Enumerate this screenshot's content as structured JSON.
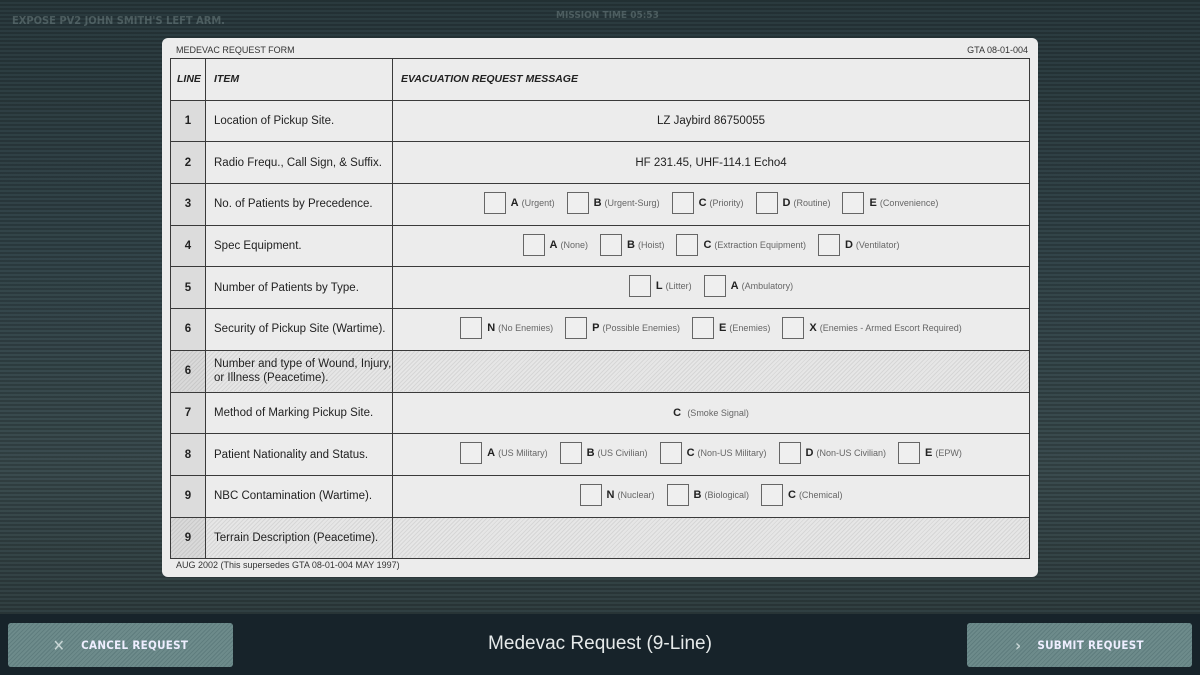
{
  "hud": {
    "objective": "EXPOSE PV2 JOHN SMITH'S LEFT ARM.",
    "mission_time_label": "MISSION TIME",
    "mission_time": "05:53"
  },
  "form": {
    "title": "MEDEVAC REQUEST FORM",
    "code": "GTA 08-01-004",
    "footer": "AUG 2002 (This supersedes GTA 08-01-004 MAY 1997)",
    "headers": {
      "line": "LINE",
      "item": "ITEM",
      "message": "EVACUATION REQUEST MESSAGE"
    },
    "rows": [
      {
        "line": "1",
        "item": "Location of Pickup Site.",
        "value": "LZ Jaybird 86750055"
      },
      {
        "line": "2",
        "item": "Radio Frequ., Call Sign, & Suffix.",
        "value": "HF 231.45, UHF-114.1 Echo4"
      },
      {
        "line": "3",
        "item": "No. of Patients by Precedence.",
        "options": [
          {
            "letter": "A",
            "desc": "(Urgent)"
          },
          {
            "letter": "B",
            "desc": "(Urgent-Surg)"
          },
          {
            "letter": "C",
            "desc": "(Priority)"
          },
          {
            "letter": "D",
            "desc": "(Routine)"
          },
          {
            "letter": "E",
            "desc": "(Convenience)"
          }
        ]
      },
      {
        "line": "4",
        "item": "Spec Equipment.",
        "options": [
          {
            "letter": "A",
            "desc": "(None)"
          },
          {
            "letter": "B",
            "desc": "(Hoist)"
          },
          {
            "letter": "C",
            "desc": "(Extraction Equipment)"
          },
          {
            "letter": "D",
            "desc": "(Ventilator)"
          }
        ]
      },
      {
        "line": "5",
        "item": "Number of Patients by Type.",
        "options": [
          {
            "letter": "L",
            "desc": "(Litter)"
          },
          {
            "letter": "A",
            "desc": "(Ambulatory)"
          }
        ]
      },
      {
        "line": "6",
        "item": "Security of Pickup Site (Wartime).",
        "options": [
          {
            "letter": "N",
            "desc": "(No Enemies)"
          },
          {
            "letter": "P",
            "desc": "(Possible Enemies)"
          },
          {
            "letter": "E",
            "desc": "(Enemies)"
          },
          {
            "letter": "X",
            "desc": "(Enemies - Armed Escort Required)"
          }
        ]
      },
      {
        "line": "6",
        "item": "Number and type of Wound, Injury, or Illness (Peacetime).",
        "disabled": true
      },
      {
        "line": "7",
        "item": "Method of Marking Pickup Site.",
        "marking": {
          "letter": "C",
          "desc": "(Smoke Signal)"
        }
      },
      {
        "line": "8",
        "item": "Patient Nationality and Status.",
        "options": [
          {
            "letter": "A",
            "desc": "(US Military)"
          },
          {
            "letter": "B",
            "desc": "(US Civilian)"
          },
          {
            "letter": "C",
            "desc": "(Non-US Military)"
          },
          {
            "letter": "D",
            "desc": "(Non-US Civilian)"
          },
          {
            "letter": "E",
            "desc": "(EPW)"
          }
        ]
      },
      {
        "line": "9",
        "item": "NBC Contamination (Wartime).",
        "options": [
          {
            "letter": "N",
            "desc": "(Nuclear)"
          },
          {
            "letter": "B",
            "desc": "(Biological)"
          },
          {
            "letter": "C",
            "desc": "(Chemical)"
          }
        ]
      },
      {
        "line": "9",
        "item": "Terrain Description (Peacetime).",
        "disabled": true
      }
    ]
  },
  "bottom": {
    "title": "Medevac Request (9-Line)",
    "cancel": "CANCEL REQUEST",
    "submit": "SUBMIT REQUEST",
    "cancel_icon": "x-icon",
    "submit_icon": "chevron-right-icon"
  }
}
